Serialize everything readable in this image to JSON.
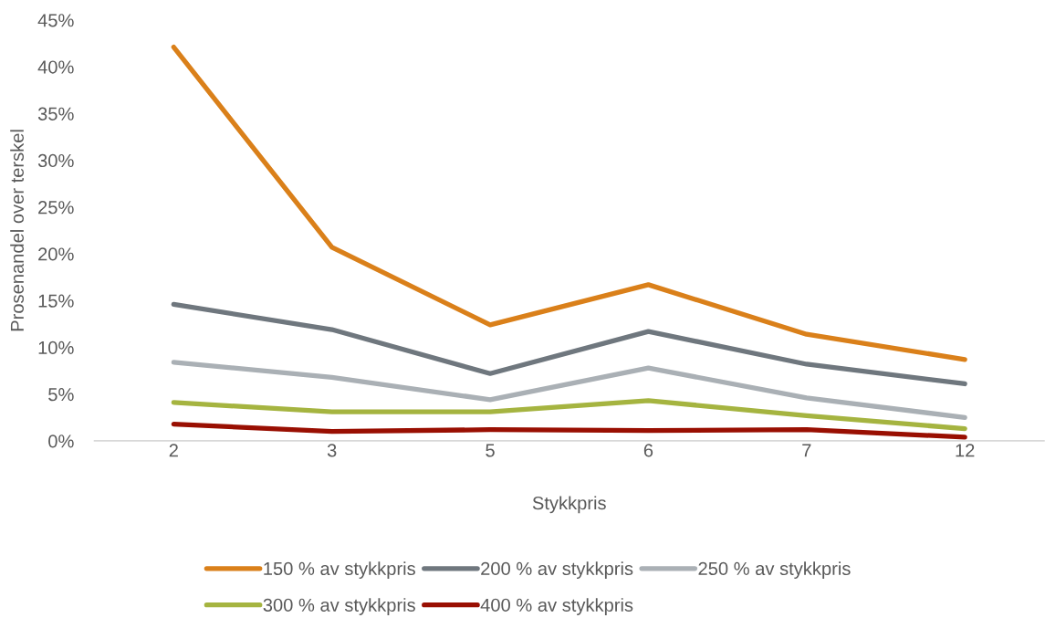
{
  "chart_data": {
    "type": "line",
    "xlabel": "Stykkpris",
    "ylabel": "Prosenandel over terskel",
    "categories": [
      "2",
      "3",
      "5",
      "6",
      "7",
      "12"
    ],
    "series": [
      {
        "name": "150 % av stykkpris",
        "color": "#da801a",
        "values": [
          42.1,
          20.7,
          12.4,
          16.7,
          11.4,
          8.7
        ]
      },
      {
        "name": "200 % av stykkpris",
        "color": "#6f777e",
        "values": [
          14.6,
          11.9,
          7.2,
          11.7,
          8.2,
          6.1
        ]
      },
      {
        "name": "250 % av stykkpris",
        "color": "#aab0b5",
        "values": [
          8.4,
          6.8,
          4.4,
          7.8,
          4.6,
          2.5
        ]
      },
      {
        "name": "300 % av stykkpris",
        "color": "#a5b440",
        "values": [
          4.1,
          3.1,
          3.1,
          4.3,
          2.7,
          1.3
        ]
      },
      {
        "name": "400 % av stykkpris",
        "color": "#990f02",
        "values": [
          1.8,
          1.0,
          1.2,
          1.1,
          1.2,
          0.4
        ]
      }
    ],
    "ylim": [
      0,
      45
    ],
    "yticks": [
      {
        "value": 0,
        "label": "0%"
      },
      {
        "value": 5,
        "label": "5%"
      },
      {
        "value": 10,
        "label": "10%"
      },
      {
        "value": 15,
        "label": "15%"
      },
      {
        "value": 20,
        "label": "20%"
      },
      {
        "value": 25,
        "label": "25%"
      },
      {
        "value": 30,
        "label": "30%"
      },
      {
        "value": 35,
        "label": "35%"
      },
      {
        "value": 40,
        "label": "40%"
      },
      {
        "value": 45,
        "label": "45%"
      }
    ],
    "legend": "bottom",
    "marker": "none",
    "line_style": "solid"
  }
}
